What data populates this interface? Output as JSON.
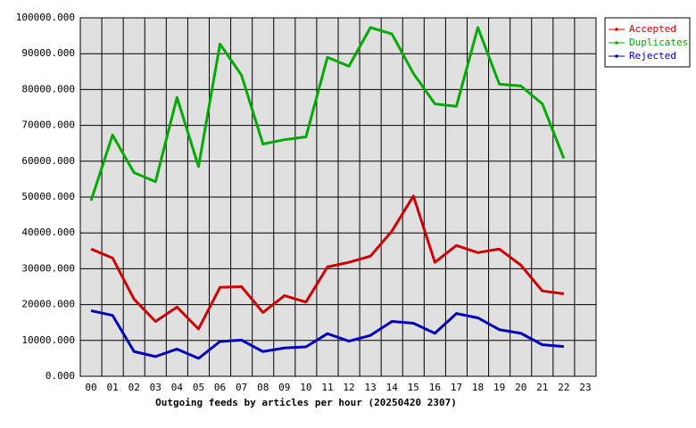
{
  "chart_data": {
    "type": "line",
    "x_label": "Outgoing feeds by articles per hour (20250420 2307)",
    "categories": [
      "00",
      "01",
      "02",
      "03",
      "04",
      "05",
      "06",
      "07",
      "08",
      "09",
      "10",
      "11",
      "12",
      "13",
      "14",
      "15",
      "16",
      "17",
      "18",
      "19",
      "20",
      "21",
      "22",
      "23"
    ],
    "series": [
      {
        "name": "Accepted",
        "color": "#cc0000",
        "values": [
          35500,
          33000,
          21500,
          15300,
          19300,
          13200,
          24800,
          25000,
          17800,
          22500,
          20700,
          30500,
          31800,
          33500,
          40500,
          50300,
          31800,
          36500,
          34500,
          35500,
          31000,
          23800,
          23000,
          null
        ]
      },
      {
        "name": "Duplicates",
        "color": "#00aa00",
        "values": [
          49000,
          67300,
          56800,
          54300,
          77800,
          58500,
          92700,
          84000,
          64800,
          66000,
          66800,
          89000,
          86500,
          97300,
          95500,
          84500,
          76000,
          75300,
          97300,
          81500,
          81000,
          76000,
          60800,
          null
        ]
      },
      {
        "name": "Rejected",
        "color": "#0000bb",
        "values": [
          18300,
          17000,
          6900,
          5500,
          7600,
          5000,
          9700,
          10100,
          6900,
          7900,
          8200,
          11900,
          9800,
          11400,
          15300,
          14800,
          12000,
          17500,
          16300,
          13000,
          12000,
          8800,
          8300,
          null
        ]
      }
    ],
    "ylim": [
      0,
      100000
    ],
    "yticks": [
      {
        "value": 0,
        "label": "0.000"
      },
      {
        "value": 10000,
        "label": "10000.000"
      },
      {
        "value": 20000,
        "label": "20000.000"
      },
      {
        "value": 30000,
        "label": "30000.000"
      },
      {
        "value": 40000,
        "label": "40000.000"
      },
      {
        "value": 50000,
        "label": "50000.000"
      },
      {
        "value": 60000,
        "label": "60000.000"
      },
      {
        "value": 70000,
        "label": "70000.000"
      },
      {
        "value": 80000,
        "label": "80000.000"
      },
      {
        "value": 90000,
        "label": "90000.000"
      },
      {
        "value": 100000,
        "label": "100000.000"
      }
    ],
    "grid": true,
    "legend": "top-right"
  }
}
